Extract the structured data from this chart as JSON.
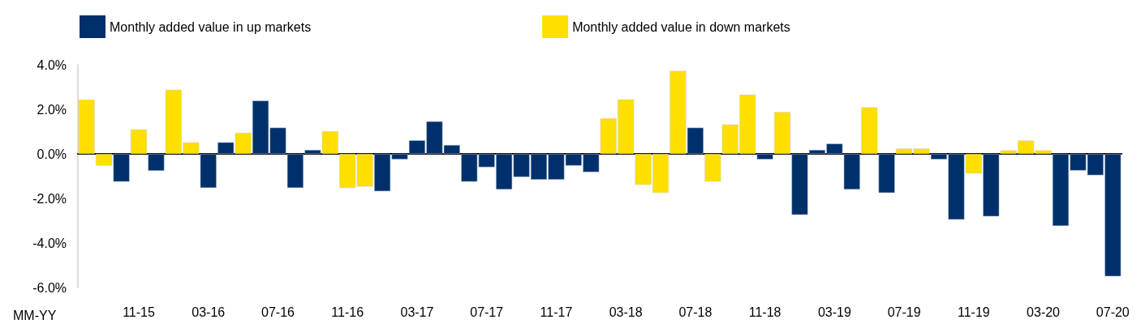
{
  "chart_data": {
    "type": "bar",
    "xlabel": "MM-YY",
    "categories": [
      null,
      null,
      null,
      "11-15",
      null,
      null,
      null,
      "03-16",
      null,
      null,
      null,
      "07-16",
      null,
      null,
      null,
      "11-16",
      null,
      null,
      null,
      "03-17",
      null,
      null,
      null,
      "07-17",
      null,
      null,
      null,
      "11-17",
      null,
      null,
      null,
      "03-18",
      null,
      null,
      null,
      "07-18",
      null,
      null,
      null,
      "11-18",
      null,
      null,
      null,
      "03-19",
      null,
      null,
      null,
      "07-19",
      null,
      null,
      null,
      "11-19",
      null,
      null,
      null,
      "03-20",
      null,
      null,
      null,
      "07-20"
    ],
    "series": [
      {
        "name": "Monthly added value in up markets",
        "color": "#00306b",
        "values": [
          null,
          null,
          -1.25,
          null,
          -0.76,
          null,
          null,
          -1.53,
          0.52,
          null,
          2.39,
          1.18,
          -1.53,
          0.18,
          null,
          null,
          null,
          -1.68,
          -0.25,
          0.61,
          1.46,
          0.4,
          -1.25,
          -0.6,
          -1.6,
          -1.04,
          -1.16,
          -1.16,
          -0.53,
          -0.82,
          null,
          null,
          null,
          null,
          null,
          1.18,
          null,
          null,
          null,
          -0.25,
          null,
          -2.74,
          0.18,
          0.46,
          -1.6,
          null,
          -1.75,
          null,
          null,
          -0.25,
          -2.95,
          null,
          -2.81,
          null,
          null,
          null,
          -3.24,
          -0.75,
          -0.96,
          -5.5
        ]
      },
      {
        "name": "Monthly added value in down markets",
        "color": "#ffdf00",
        "values": [
          2.44,
          -0.53,
          null,
          1.1,
          null,
          2.88,
          0.52,
          null,
          null,
          0.95,
          null,
          null,
          null,
          null,
          1.02,
          -1.53,
          -1.47,
          null,
          null,
          null,
          null,
          null,
          null,
          null,
          null,
          null,
          null,
          null,
          null,
          null,
          1.6,
          2.45,
          -1.39,
          -1.75,
          3.73,
          null,
          -1.25,
          1.32,
          2.66,
          null,
          1.88,
          null,
          null,
          null,
          null,
          2.09,
          null,
          0.24,
          0.24,
          null,
          null,
          -0.88,
          null,
          0.16,
          0.6,
          0.16,
          null,
          null,
          null,
          null
        ]
      }
    ],
    "ylim": [
      -6,
      4
    ],
    "yticks": [
      {
        "value": -6,
        "label": "-6.0%"
      },
      {
        "value": -4,
        "label": "-4.0%"
      },
      {
        "value": -2,
        "label": "-2.0%"
      },
      {
        "value": 0,
        "label": "0.0%"
      },
      {
        "value": 2,
        "label": "2.0%"
      },
      {
        "value": 4,
        "label": "4.0%"
      }
    ],
    "legend": "top left"
  }
}
